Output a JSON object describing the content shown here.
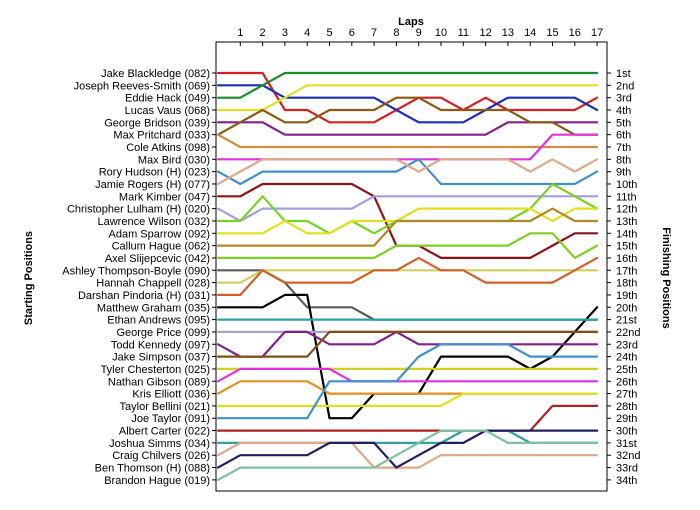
{
  "chart_data": {
    "type": "line",
    "title": "",
    "xlabel": "Laps",
    "ylabel_left": "Starting Positions",
    "ylabel_right": "Finishing Positions",
    "x": [
      1,
      2,
      3,
      4,
      5,
      6,
      7,
      8,
      9,
      10,
      11,
      12,
      13,
      14,
      15,
      16,
      17
    ],
    "y_reversed": true,
    "grid": false,
    "drivers": [
      "Jake Blackledge (082)",
      "Joseph Reeves-Smith (069)",
      "Eddie Hack (049)",
      "Lucas Vaus (068)",
      "George Bridson (039)",
      "Max Pritchard (033)",
      "Cole Atkins (098)",
      "Max Bird (030)",
      "Rory Hudson (H) (023)",
      "Jamie Rogers (H) (077)",
      "Mark Kimber (047)",
      "Christopher Lulham (H) (020)",
      "Lawrence Wilson (032)",
      "Adam Sparrow (092)",
      "Callum Hague (062)",
      "Axel Slijepcevic (042)",
      "Ashley Thompson-Boyle (090)",
      "Hannah Chappell (028)",
      "Darshan Pindoria (H) (031)",
      "Matthew Graham (035)",
      "Ethan Andrews (095)",
      "George Price (099)",
      "Todd Kennedy (097)",
      "Jake Simpson (037)",
      "Tyler Chesterton (025)",
      "Nathan Gibson (089)",
      "Kris Elliott (036)",
      "Taylor Bellini (021)",
      "Joe Taylor (091)",
      "Albert Carter (022)",
      "Joshua Simms (034)",
      "Craig Chilvers (026)",
      "Ben Thomson (H) (088)",
      "Brandon Hague (019)"
    ],
    "finishing_positions": [
      "1st",
      "2nd",
      "3rd",
      "4th",
      "5th",
      "6th",
      "7th",
      "8th",
      "9th",
      "10th",
      "11th",
      "12th",
      "13th",
      "14th",
      "15th",
      "16th",
      "17th",
      "18th",
      "19th",
      "20th",
      "21st",
      "22nd",
      "23rd",
      "24th",
      "25th",
      "26th",
      "27th",
      "28th",
      "29th",
      "30th",
      "31st",
      "32nd",
      "33rd",
      "34th"
    ],
    "series": [
      {
        "color": "#d42020",
        "positions": [
          1,
          1,
          1,
          4,
          4,
          5,
          5,
          5,
          4,
          3,
          3,
          4,
          3,
          4,
          4,
          4,
          4,
          3
        ]
      },
      {
        "color": "#1c2fb4",
        "positions": [
          2,
          2,
          2,
          3,
          3,
          3,
          3,
          3,
          4,
          5,
          5,
          5,
          4,
          3,
          3,
          3,
          3,
          4
        ]
      },
      {
        "color": "#1a8c2a",
        "positions": [
          3,
          3,
          2,
          1,
          1,
          1,
          1,
          1,
          1,
          1,
          1,
          1,
          1,
          1,
          1,
          1,
          1,
          1
        ]
      },
      {
        "color": "#e0e020",
        "positions": [
          4,
          4,
          4,
          3,
          2,
          2,
          2,
          2,
          2,
          2,
          2,
          2,
          2,
          2,
          2,
          2,
          2,
          2
        ]
      },
      {
        "color": "#80208c",
        "positions": [
          5,
          5,
          5,
          6,
          6,
          6,
          6,
          6,
          6,
          6,
          6,
          6,
          6,
          5,
          5,
          5,
          5,
          5
        ]
      },
      {
        "color": "#8c5a14",
        "positions": [
          6,
          5,
          4,
          5,
          5,
          4,
          4,
          4,
          3,
          3,
          4,
          4,
          4,
          4,
          5,
          5,
          6,
          6
        ]
      },
      {
        "color": "#d08c40",
        "positions": [
          6,
          7,
          7,
          7,
          7,
          7,
          7,
          7,
          7,
          7,
          7,
          7,
          7,
          7,
          7,
          7,
          7,
          7
        ]
      },
      {
        "color": "#e030e0",
        "positions": [
          8,
          8,
          8,
          8,
          8,
          8,
          8,
          8,
          8,
          8,
          8,
          8,
          8,
          8,
          8,
          6,
          6,
          6
        ]
      },
      {
        "color": "#4090d0",
        "positions": [
          9,
          10,
          9,
          9,
          9,
          9,
          9,
          9,
          9,
          8,
          10,
          10,
          10,
          10,
          10,
          10,
          10,
          9
        ]
      },
      {
        "color": "#e0a888",
        "positions": [
          10,
          9,
          8,
          8,
          8,
          8,
          8,
          8,
          8,
          9,
          8,
          8,
          8,
          8,
          9,
          8,
          9,
          8
        ]
      },
      {
        "color": "#8c1414",
        "positions": [
          11,
          11,
          10,
          10,
          10,
          10,
          10,
          11,
          15,
          15,
          16,
          16,
          16,
          16,
          16,
          15,
          14,
          14
        ]
      },
      {
        "color": "#a0a0e0",
        "positions": [
          12,
          13,
          12,
          12,
          12,
          12,
          12,
          11,
          11,
          11,
          11,
          11,
          11,
          11,
          11,
          11,
          11,
          11
        ]
      },
      {
        "color": "#7cd024",
        "positions": [
          13,
          13,
          11,
          13,
          13,
          14,
          13,
          14,
          13,
          13,
          13,
          13,
          13,
          13,
          12,
          10,
          11,
          12
        ]
      },
      {
        "color": "#e0e020",
        "positions": [
          14,
          14,
          14,
          13,
          14,
          14,
          13,
          13,
          13,
          12,
          12,
          12,
          12,
          12,
          12,
          13,
          12,
          12
        ]
      },
      {
        "color": "#b08828",
        "positions": [
          15,
          15,
          15,
          15,
          15,
          15,
          15,
          15,
          13,
          13,
          13,
          13,
          13,
          13,
          13,
          12,
          13,
          13
        ]
      },
      {
        "color": "#7cd024",
        "positions": [
          16,
          16,
          16,
          16,
          16,
          16,
          16,
          16,
          15,
          15,
          15,
          15,
          15,
          15,
          14,
          14,
          16,
          15
        ]
      },
      {
        "color": "#5a5a5a",
        "positions": [
          17,
          17,
          17,
          18,
          20,
          20,
          20,
          21,
          21,
          21,
          21,
          21,
          21,
          21,
          21,
          21,
          21,
          21
        ]
      },
      {
        "color": "#d0d060",
        "positions": [
          18,
          18,
          17,
          17,
          17,
          17,
          17,
          17,
          17,
          17,
          17,
          17,
          17,
          17,
          17,
          17,
          17,
          17
        ]
      },
      {
        "color": "#d06028",
        "positions": [
          19,
          19,
          17,
          18,
          18,
          18,
          18,
          17,
          17,
          16,
          17,
          17,
          18,
          18,
          18,
          18,
          17,
          16
        ]
      },
      {
        "color": "#000000",
        "positions": [
          20,
          20,
          20,
          19,
          19,
          29,
          29,
          27,
          27,
          27,
          24,
          24,
          24,
          24,
          25,
          24,
          22,
          20
        ]
      },
      {
        "color": "#30a0a0",
        "positions": [
          21,
          21,
          21,
          21,
          21,
          21,
          21,
          21,
          21,
          21,
          21,
          21,
          21,
          21,
          21,
          21,
          21,
          21
        ]
      },
      {
        "color": "#b0a0d0",
        "positions": [
          22,
          22,
          22,
          22,
          22,
          22,
          22,
          22,
          22,
          22,
          22,
          22,
          22,
          22,
          22,
          22,
          22,
          22
        ]
      },
      {
        "color": "#80208c",
        "positions": [
          23,
          24,
          24,
          22,
          22,
          23,
          23,
          23,
          22,
          23,
          23,
          23,
          23,
          23,
          23,
          23,
          23,
          23
        ]
      },
      {
        "color": "#805014",
        "positions": [
          24,
          24,
          24,
          24,
          24,
          22,
          22,
          22,
          22,
          22,
          22,
          22,
          22,
          22,
          22,
          22,
          22,
          22
        ]
      },
      {
        "color": "#d0d020",
        "positions": [
          25,
          25,
          25,
          25,
          25,
          25,
          25,
          25,
          25,
          25,
          25,
          25,
          25,
          25,
          25,
          25,
          25,
          25
        ]
      },
      {
        "color": "#e030e0",
        "positions": [
          26,
          25,
          25,
          25,
          25,
          25,
          26,
          26,
          26,
          26,
          26,
          26,
          26,
          26,
          26,
          26,
          26,
          26
        ]
      },
      {
        "color": "#e09020",
        "positions": [
          27,
          26,
          26,
          26,
          26,
          27,
          27,
          27,
          27,
          27,
          27,
          27,
          27,
          27,
          27,
          27,
          27,
          27
        ]
      },
      {
        "color": "#e0e020",
        "positions": [
          28,
          28,
          28,
          28,
          28,
          28,
          28,
          28,
          28,
          28,
          28,
          27,
          27,
          27,
          27,
          27,
          27,
          27
        ]
      },
      {
        "color": "#4090d0",
        "positions": [
          29,
          29,
          29,
          29,
          29,
          26,
          26,
          26,
          26,
          24,
          23,
          23,
          23,
          23,
          24,
          24,
          24,
          24
        ]
      },
      {
        "color": "#b02020",
        "positions": [
          30,
          30,
          30,
          30,
          30,
          30,
          30,
          30,
          30,
          30,
          30,
          30,
          30,
          30,
          30,
          28,
          28,
          28
        ]
      },
      {
        "color": "#30a0a0",
        "positions": [
          31,
          31,
          31,
          31,
          31,
          31,
          31,
          31,
          31,
          31,
          31,
          30,
          30,
          30,
          31,
          31,
          31,
          31
        ]
      },
      {
        "color": "#e0a888",
        "positions": [
          32,
          31,
          31,
          31,
          31,
          31,
          31,
          33,
          33,
          33,
          32,
          32,
          32,
          32,
          32,
          32,
          32,
          32
        ]
      },
      {
        "color": "#202060",
        "positions": [
          33,
          32,
          32,
          32,
          32,
          31,
          31,
          31,
          33,
          32,
          31,
          31,
          30,
          30,
          30,
          30,
          30,
          30
        ]
      },
      {
        "color": "#80c0a0",
        "positions": [
          34,
          33,
          33,
          33,
          33,
          33,
          33,
          33,
          32,
          31,
          30,
          30,
          30,
          31,
          31,
          31,
          31,
          31
        ]
      }
    ]
  }
}
